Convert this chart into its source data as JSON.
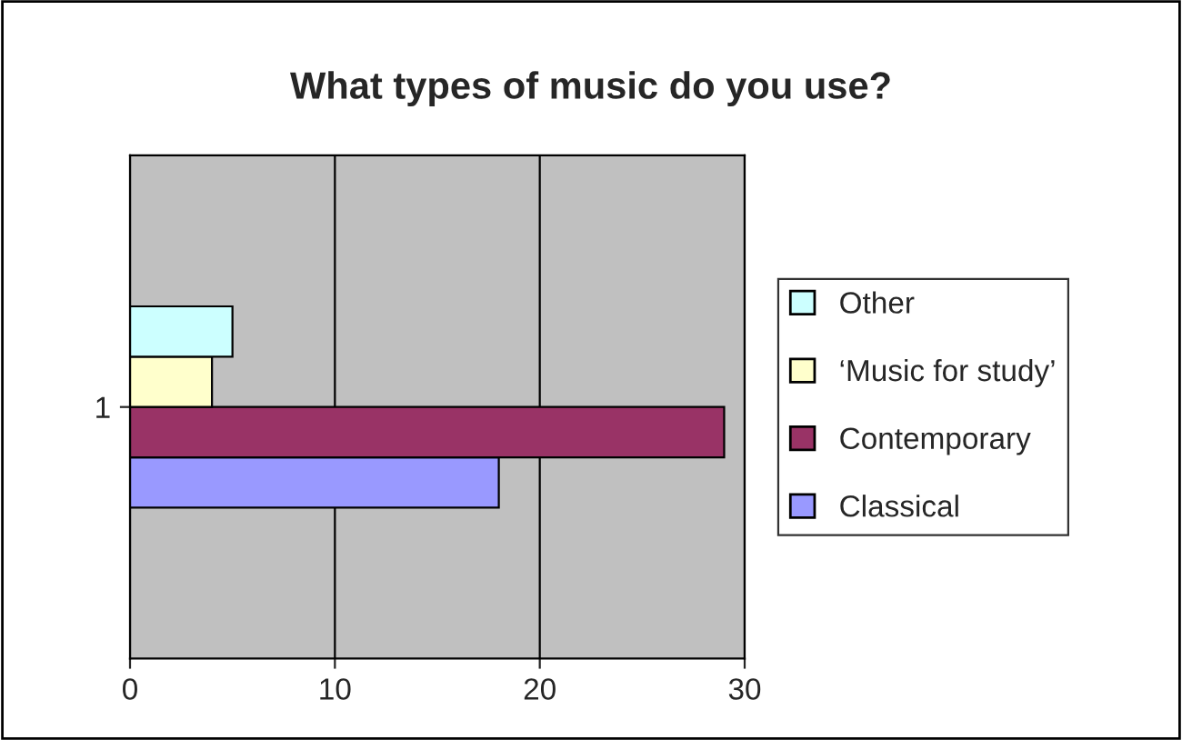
{
  "chart_data": {
    "type": "bar",
    "orientation": "horizontal",
    "title": "What types of music do you use?",
    "categories": [
      "1"
    ],
    "series": [
      {
        "name": "Classical",
        "color": "#9999ff",
        "values": [
          18
        ]
      },
      {
        "name": "Contemporary",
        "color": "#993366",
        "values": [
          29
        ]
      },
      {
        "name": "‘Music for study’",
        "color": "#ffffcc",
        "values": [
          4
        ]
      },
      {
        "name": "Other",
        "color": "#ccffff",
        "values": [
          5
        ]
      }
    ],
    "xlim": [
      0,
      30
    ],
    "xticks": [
      0,
      10,
      20,
      30
    ],
    "grid": "x",
    "legend": "right"
  }
}
